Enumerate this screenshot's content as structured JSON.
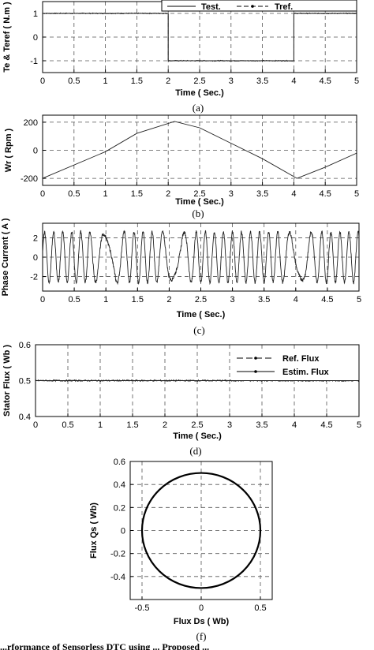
{
  "chart_data": [
    {
      "id": "a",
      "type": "line",
      "caption": "(a)",
      "xlabel": "Time ( Sec.)",
      "ylabel": "Te & Teref ( N.m )",
      "xlim": [
        0,
        5
      ],
      "ylim": [
        -1.5,
        1.5
      ],
      "xticks": [
        0,
        0.5,
        1,
        1.5,
        2,
        2.5,
        3,
        3.5,
        4,
        4.5,
        5
      ],
      "xtick_labels": [
        "0",
        "0.5",
        "1",
        "1.5",
        "2",
        "2.5",
        "3",
        "3.5",
        "4",
        "4.5",
        "5"
      ],
      "yticks": [
        1,
        0,
        -1
      ],
      "ytick_labels": [
        "1",
        "0",
        "-1"
      ],
      "grid": true,
      "legend": {
        "position": "top-right",
        "entries": [
          "Test.",
          "Tref."
        ]
      },
      "series": [
        {
          "name": "Test.",
          "x": [
            0,
            2,
            2,
            4,
            4,
            5
          ],
          "y": [
            1,
            1,
            -1,
            -1,
            1,
            1
          ],
          "noise": 0.02
        },
        {
          "name": "Tref.",
          "x": [
            0,
            2,
            2,
            4,
            4,
            5
          ],
          "y": [
            1,
            1,
            -1,
            -1,
            1,
            1
          ]
        }
      ]
    },
    {
      "id": "b",
      "type": "line",
      "caption": "(b)",
      "xlabel": "Time ( Sec.)",
      "ylabel": "Wr ( Rpm )",
      "xlim": [
        0,
        5
      ],
      "ylim": [
        -250,
        250
      ],
      "xticks": [
        0,
        0.5,
        1,
        1.5,
        2,
        2.5,
        3,
        3.5,
        4,
        4.5,
        5
      ],
      "xtick_labels": [
        "0",
        "0.5",
        "1",
        "1.5",
        "2",
        "2.5",
        "3",
        "3.5",
        "4",
        "4.5",
        "5"
      ],
      "yticks": [
        200,
        0,
        -200
      ],
      "ytick_labels": [
        "200",
        "0",
        "-200"
      ],
      "grid": true,
      "series": [
        {
          "name": "",
          "x": [
            0,
            1,
            1.5,
            2.1,
            2.5,
            3,
            3.5,
            4.05,
            4.5,
            5
          ],
          "y": [
            -200,
            -10,
            120,
            205,
            160,
            50,
            -60,
            -200,
            -120,
            -20
          ]
        }
      ]
    },
    {
      "id": "c",
      "type": "line",
      "caption": "(c)",
      "xlabel": "Time ( Sec.)",
      "ylabel": "Phase Current ( A )",
      "xlim": [
        0,
        5
      ],
      "ylim": [
        -3.5,
        3.5
      ],
      "xticks": [
        0,
        0.5,
        1,
        1.5,
        2,
        2.5,
        3,
        3.5,
        4,
        4.5,
        5
      ],
      "xtick_labels": [
        "0",
        "0.5",
        "1",
        "1.5",
        "2",
        "2.5",
        "3",
        "3.5",
        "4",
        "4.5",
        "5"
      ],
      "yticks": [
        2,
        0,
        -2
      ],
      "ytick_labels": [
        "2",
        "0",
        "-2"
      ],
      "grid": true,
      "series": [
        {
          "name": "",
          "amplitude": 2.6,
          "zero_crossings": [
            1.05,
            2.1,
            4.05
          ]
        }
      ]
    },
    {
      "id": "d",
      "type": "line",
      "caption": "(d)",
      "xlabel": "Time ( Sec.)",
      "ylabel": "Stator Flux ( Wb )",
      "xlim": [
        0,
        5
      ],
      "ylim": [
        0.4,
        0.6
      ],
      "xticks": [
        0,
        0.5,
        1,
        1.5,
        2,
        2.5,
        3,
        3.5,
        4,
        4.5,
        5
      ],
      "xtick_labels": [
        "0",
        "0.5",
        "1",
        "1.5",
        "2",
        "2.5",
        "3",
        "3.5",
        "4",
        "4.5",
        "5"
      ],
      "yticks": [
        0.6,
        0.5,
        0.4
      ],
      "ytick_labels": [
        "0.6",
        "0.5",
        "0.4"
      ],
      "grid": true,
      "legend": {
        "position": "top-right",
        "entries": [
          "Ref. Flux",
          "Estim. Flux"
        ]
      },
      "series": [
        {
          "name": "Ref. Flux",
          "x": [
            0,
            5
          ],
          "y": [
            0.5,
            0.5
          ]
        },
        {
          "name": "Estim. Flux",
          "x": [
            0,
            5
          ],
          "y": [
            0.5,
            0.5
          ],
          "noise": 0.002
        }
      ]
    },
    {
      "id": "f",
      "type": "line",
      "caption": "(f)",
      "xlabel": "Flux Ds (  Wb)",
      "ylabel": "Flux Qs (  Wb)",
      "xlim": [
        -0.6,
        0.6
      ],
      "ylim": [
        -0.6,
        0.6
      ],
      "xticks": [
        -0.5,
        0,
        0.5
      ],
      "xtick_labels": [
        "-0.5",
        "0",
        "0.5"
      ],
      "yticks": [
        0.6,
        0.4,
        0.2,
        0,
        -0.2,
        -0.4
      ],
      "ytick_labels": [
        "0.6",
        "0.4",
        "0.2",
        "0",
        "-0.2",
        "-0.4"
      ],
      "grid": true,
      "series": [
        {
          "name": "",
          "shape": "circle",
          "radius": 0.5
        }
      ]
    }
  ],
  "bottom_text": "...rformance of Sensorless DTC using ... Proposed ..."
}
